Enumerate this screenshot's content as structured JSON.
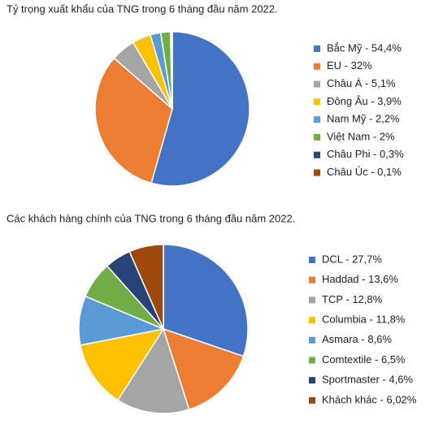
{
  "chart_data": [
    {
      "type": "pie",
      "title": "Tỷ trọng xuất khẩu của TNG trong 6 tháng đầu năm 2022.",
      "categories": [
        "Bắc Mỹ - 54,4%",
        "EU - 32%",
        "Châu Á - 5,1%",
        "Đông Âu - 3,9%",
        "Nam Mỹ - 2,2%",
        "Việt Nam - 2%",
        "Châu Phi - 0,3%",
        "Châu Úc - 0,1%"
      ],
      "values": [
        54.4,
        32,
        5.1,
        3.9,
        2.2,
        2,
        0.3,
        0.1
      ],
      "colors": [
        "#4472c4",
        "#ed7d31",
        "#a5a5a5",
        "#ffc000",
        "#5b9bd5",
        "#70ad47",
        "#264478",
        "#9e480e"
      ]
    },
    {
      "type": "pie",
      "title": "Các khách hàng chính của TNG trong 6 tháng đầu năm 2022.",
      "categories": [
        "DCL - 27,7%",
        "Haddad - 13,6%",
        "TCP - 12,8%",
        "Columbia - 11,8%",
        "Asmara - 8,6%",
        "Comtextile - 6,5%",
        "Sportmaster - 4,6%",
        "Khách khác - 6,02%"
      ],
      "values": [
        27.7,
        13.6,
        12.8,
        11.8,
        8.6,
        6.5,
        4.6,
        6.02
      ],
      "colors": [
        "#4472c4",
        "#ed7d31",
        "#a5a5a5",
        "#ffc000",
        "#5b9bd5",
        "#70ad47",
        "#264478",
        "#9e480e"
      ]
    }
  ]
}
